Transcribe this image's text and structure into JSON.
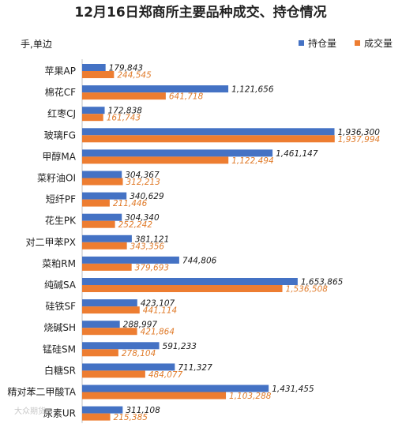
{
  "chart_data": {
    "type": "bar",
    "orientation": "horizontal",
    "title": "12月16日郑商所主要品种成交、持仓情况",
    "unit_label": "手,单边",
    "legend_position": "top-right",
    "grid": false,
    "xlim": [
      0,
      2000000
    ],
    "categories": [
      "苹果AP",
      "棉花CF",
      "红枣CJ",
      "玻璃FG",
      "甲醇MA",
      "菜籽油OI",
      "短纤PF",
      "花生PK",
      "对二甲苯PX",
      "菜粕RM",
      "纯碱SA",
      "硅铁SF",
      "烧碱SH",
      "锰硅SM",
      "白糖SR",
      "精对苯二甲酸TA",
      "尿素UR"
    ],
    "series": [
      {
        "name": "持仓量",
        "color": "#4472c4",
        "values": [
          179843,
          1121656,
          172838,
          1936300,
          1461147,
          304367,
          340629,
          304340,
          381121,
          744806,
          1653865,
          423107,
          288997,
          591233,
          711327,
          1431455,
          311108
        ],
        "labels": [
          "179,843",
          "1,121,656",
          "172,838",
          "1,936,300",
          "1,461,147",
          "304,367",
          "340,629",
          "304,340",
          "381,121",
          "744,806",
          "1,653,865",
          "423,107",
          "288,997",
          "591,233",
          "711,327",
          "1,431,455",
          "311,108"
        ]
      },
      {
        "name": "成交量",
        "color": "#ed7d31",
        "values": [
          244545,
          641718,
          161743,
          1937994,
          1122494,
          312213,
          211446,
          252242,
          343356,
          379693,
          1536508,
          441114,
          421864,
          278104,
          484077,
          1103288,
          215385
        ],
        "labels": [
          "244,545",
          "641,718",
          "161,743",
          "1,937,994",
          "1,122,494",
          "312,213",
          "211,446",
          "252,242",
          "343,356",
          "379,693",
          "1,536,508",
          "441,114",
          "421,864",
          "278,104",
          "484,077",
          "1,103,288",
          "215,385"
        ]
      }
    ]
  },
  "watermark": "大众期货"
}
